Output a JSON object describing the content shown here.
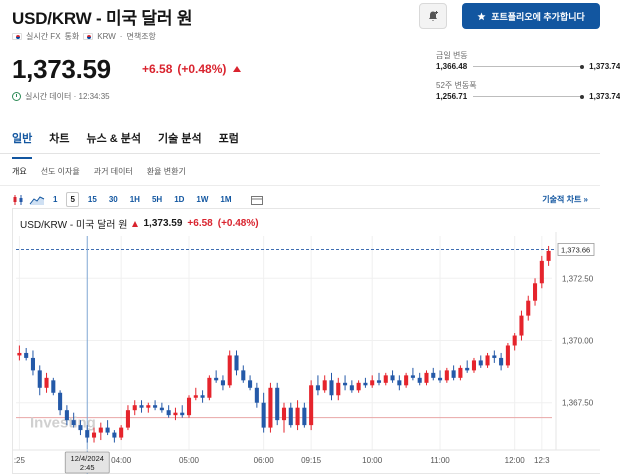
{
  "header": {
    "title": "USD/KRW - 미국 달러 원",
    "meta_items": [
      "실시간 FX",
      "통화",
      "KRW",
      "·",
      "면책조항"
    ],
    "portfolio_button": "포트폴리오에 추가합니다"
  },
  "quote": {
    "price": "1,373.59",
    "change": "+6.58",
    "change_pct": "(+0.48%)",
    "realtime_label": "실시간 데이터 · 12:34:35",
    "up_color": "#d9232e"
  },
  "ranges": {
    "day": {
      "label": "금일 변동",
      "low": "1,366.48",
      "high": "1,373.74"
    },
    "week52": {
      "label": "52주 변동폭",
      "low": "1,256.71",
      "high": "1,373.74"
    }
  },
  "tabs": [
    {
      "label": "일반",
      "active": true
    },
    {
      "label": "차트"
    },
    {
      "label": "뉴스 & 분석"
    },
    {
      "label": "기술 분석"
    },
    {
      "label": "포럼"
    }
  ],
  "subtabs": [
    "개요",
    "선도 이자율",
    "과거 데이터",
    "환율 변환기"
  ],
  "toolbar": {
    "intervals": [
      "1",
      "5",
      "15",
      "30",
      "1H",
      "5H",
      "1D",
      "1W",
      "1M"
    ],
    "selected": "5",
    "advanced_chart": "기술적 차트 »"
  },
  "chart_legend": {
    "name": "USD/KRW - 미국 달러 원",
    "value": "1,373.59",
    "change": "+6.58",
    "pct": "(+0.48%)"
  },
  "chart_data": {
    "type": "candlestick",
    "watermark": "Investing",
    "y_ticks": [
      "1,372.50",
      "1,370.00",
      "1,367.50"
    ],
    "y_tick_values": [
      1372.5,
      1370.0,
      1367.5
    ],
    "last_price_label": "1,373.66",
    "last_price": 1373.66,
    "ref_line": 1366.9,
    "ylim": [
      1365.6,
      1374.2
    ],
    "x_ticks": [
      ":25",
      "04:00",
      "05:00",
      "06:00",
      "09:15",
      "10:00",
      "11:00",
      "12:00",
      "12:3"
    ],
    "x_tick_index": [
      0,
      15,
      25,
      36,
      43,
      52,
      62,
      73,
      77
    ],
    "crosshair_index": 10,
    "crosshair_date": "12/4/2024",
    "crosshair_time": "2:45",
    "up_color": "#e5242c",
    "down_color": "#2459a8",
    "candles": [
      {
        "o": 1369.4,
        "h": 1369.8,
        "l": 1369.2,
        "c": 1369.5
      },
      {
        "o": 1369.5,
        "h": 1369.7,
        "l": 1369.2,
        "c": 1369.3
      },
      {
        "o": 1369.3,
        "h": 1369.6,
        "l": 1368.6,
        "c": 1368.8
      },
      {
        "o": 1368.8,
        "h": 1369.0,
        "l": 1367.8,
        "c": 1368.1
      },
      {
        "o": 1368.1,
        "h": 1368.7,
        "l": 1367.9,
        "c": 1368.5
      },
      {
        "o": 1368.4,
        "h": 1368.5,
        "l": 1367.8,
        "c": 1367.9
      },
      {
        "o": 1367.9,
        "h": 1368.0,
        "l": 1367.0,
        "c": 1367.2
      },
      {
        "o": 1367.2,
        "h": 1367.4,
        "l": 1366.6,
        "c": 1366.8
      },
      {
        "o": 1366.8,
        "h": 1367.1,
        "l": 1366.5,
        "c": 1366.6
      },
      {
        "o": 1366.6,
        "h": 1366.8,
        "l": 1366.2,
        "c": 1366.4
      },
      {
        "o": 1366.4,
        "h": 1366.6,
        "l": 1365.9,
        "c": 1366.1
      },
      {
        "o": 1366.1,
        "h": 1366.5,
        "l": 1365.9,
        "c": 1366.3
      },
      {
        "o": 1366.3,
        "h": 1366.7,
        "l": 1366.0,
        "c": 1366.5
      },
      {
        "o": 1366.5,
        "h": 1366.8,
        "l": 1366.2,
        "c": 1366.3
      },
      {
        "o": 1366.3,
        "h": 1366.4,
        "l": 1365.9,
        "c": 1366.1
      },
      {
        "o": 1366.1,
        "h": 1366.6,
        "l": 1366.0,
        "c": 1366.5
      },
      {
        "o": 1366.5,
        "h": 1367.4,
        "l": 1366.4,
        "c": 1367.2
      },
      {
        "o": 1367.2,
        "h": 1367.6,
        "l": 1367.0,
        "c": 1367.4
      },
      {
        "o": 1367.4,
        "h": 1367.6,
        "l": 1367.1,
        "c": 1367.3
      },
      {
        "o": 1367.3,
        "h": 1367.5,
        "l": 1367.1,
        "c": 1367.4
      },
      {
        "o": 1367.4,
        "h": 1367.6,
        "l": 1367.2,
        "c": 1367.3
      },
      {
        "o": 1367.3,
        "h": 1367.5,
        "l": 1367.1,
        "c": 1367.2
      },
      {
        "o": 1367.2,
        "h": 1367.4,
        "l": 1366.9,
        "c": 1367.0
      },
      {
        "o": 1367.0,
        "h": 1367.3,
        "l": 1366.8,
        "c": 1367.1
      },
      {
        "o": 1367.1,
        "h": 1367.4,
        "l": 1366.9,
        "c": 1367.0
      },
      {
        "o": 1367.0,
        "h": 1367.8,
        "l": 1366.9,
        "c": 1367.7
      },
      {
        "o": 1367.7,
        "h": 1368.1,
        "l": 1367.6,
        "c": 1367.8
      },
      {
        "o": 1367.8,
        "h": 1368.0,
        "l": 1367.5,
        "c": 1367.7
      },
      {
        "o": 1367.7,
        "h": 1368.6,
        "l": 1367.6,
        "c": 1368.5
      },
      {
        "o": 1368.5,
        "h": 1368.8,
        "l": 1368.3,
        "c": 1368.4
      },
      {
        "o": 1368.4,
        "h": 1368.6,
        "l": 1368.0,
        "c": 1368.2
      },
      {
        "o": 1368.2,
        "h": 1369.6,
        "l": 1368.1,
        "c": 1369.4
      },
      {
        "o": 1369.4,
        "h": 1369.6,
        "l": 1368.6,
        "c": 1368.8
      },
      {
        "o": 1368.8,
        "h": 1369.0,
        "l": 1368.3,
        "c": 1368.4
      },
      {
        "o": 1368.4,
        "h": 1368.6,
        "l": 1368.0,
        "c": 1368.1
      },
      {
        "o": 1368.1,
        "h": 1368.3,
        "l": 1367.3,
        "c": 1367.5
      },
      {
        "o": 1367.5,
        "h": 1367.9,
        "l": 1366.3,
        "c": 1366.5
      },
      {
        "o": 1366.5,
        "h": 1368.3,
        "l": 1366.3,
        "c": 1368.1
      },
      {
        "o": 1368.1,
        "h": 1368.3,
        "l": 1366.6,
        "c": 1366.8
      },
      {
        "o": 1366.8,
        "h": 1367.5,
        "l": 1366.3,
        "c": 1367.3
      },
      {
        "o": 1367.3,
        "h": 1367.5,
        "l": 1366.5,
        "c": 1366.6
      },
      {
        "o": 1366.6,
        "h": 1367.6,
        "l": 1366.4,
        "c": 1367.3
      },
      {
        "o": 1367.3,
        "h": 1367.5,
        "l": 1366.5,
        "c": 1366.6
      },
      {
        "o": 1366.6,
        "h": 1368.4,
        "l": 1366.4,
        "c": 1368.2
      },
      {
        "o": 1368.2,
        "h": 1368.6,
        "l": 1367.8,
        "c": 1368.0
      },
      {
        "o": 1368.0,
        "h": 1368.6,
        "l": 1367.9,
        "c": 1368.4
      },
      {
        "o": 1368.4,
        "h": 1368.7,
        "l": 1367.6,
        "c": 1367.8
      },
      {
        "o": 1367.8,
        "h": 1368.5,
        "l": 1367.6,
        "c": 1368.3
      },
      {
        "o": 1368.3,
        "h": 1368.6,
        "l": 1368.0,
        "c": 1368.2
      },
      {
        "o": 1368.2,
        "h": 1368.4,
        "l": 1367.9,
        "c": 1368.0
      },
      {
        "o": 1368.0,
        "h": 1368.4,
        "l": 1367.9,
        "c": 1368.3
      },
      {
        "o": 1368.3,
        "h": 1368.5,
        "l": 1368.1,
        "c": 1368.2
      },
      {
        "o": 1368.2,
        "h": 1368.6,
        "l": 1368.1,
        "c": 1368.4
      },
      {
        "o": 1368.4,
        "h": 1368.7,
        "l": 1368.2,
        "c": 1368.3
      },
      {
        "o": 1368.3,
        "h": 1368.7,
        "l": 1368.2,
        "c": 1368.6
      },
      {
        "o": 1368.6,
        "h": 1368.8,
        "l": 1368.3,
        "c": 1368.4
      },
      {
        "o": 1368.4,
        "h": 1368.6,
        "l": 1368.0,
        "c": 1368.2
      },
      {
        "o": 1368.2,
        "h": 1368.7,
        "l": 1368.1,
        "c": 1368.6
      },
      {
        "o": 1368.6,
        "h": 1368.9,
        "l": 1368.4,
        "c": 1368.5
      },
      {
        "o": 1368.5,
        "h": 1368.7,
        "l": 1368.2,
        "c": 1368.3
      },
      {
        "o": 1368.3,
        "h": 1368.8,
        "l": 1368.2,
        "c": 1368.7
      },
      {
        "o": 1368.7,
        "h": 1368.9,
        "l": 1368.4,
        "c": 1368.5
      },
      {
        "o": 1368.5,
        "h": 1368.8,
        "l": 1368.3,
        "c": 1368.4
      },
      {
        "o": 1368.4,
        "h": 1368.9,
        "l": 1368.3,
        "c": 1368.8
      },
      {
        "o": 1368.8,
        "h": 1369.0,
        "l": 1368.4,
        "c": 1368.5
      },
      {
        "o": 1368.5,
        "h": 1369.0,
        "l": 1368.4,
        "c": 1368.9
      },
      {
        "o": 1368.9,
        "h": 1369.2,
        "l": 1368.7,
        "c": 1368.8
      },
      {
        "o": 1368.8,
        "h": 1369.3,
        "l": 1368.7,
        "c": 1369.2
      },
      {
        "o": 1369.2,
        "h": 1369.4,
        "l": 1368.9,
        "c": 1369.0
      },
      {
        "o": 1369.0,
        "h": 1369.5,
        "l": 1368.9,
        "c": 1369.4
      },
      {
        "o": 1369.4,
        "h": 1369.6,
        "l": 1369.1,
        "c": 1369.3
      },
      {
        "o": 1369.3,
        "h": 1369.5,
        "l": 1368.8,
        "c": 1369.0
      },
      {
        "o": 1369.0,
        "h": 1369.9,
        "l": 1368.9,
        "c": 1369.8
      },
      {
        "o": 1369.8,
        "h": 1370.3,
        "l": 1369.6,
        "c": 1370.2
      },
      {
        "o": 1370.2,
        "h": 1371.2,
        "l": 1370.0,
        "c": 1371.0
      },
      {
        "o": 1371.0,
        "h": 1371.8,
        "l": 1370.8,
        "c": 1371.6
      },
      {
        "o": 1371.6,
        "h": 1372.5,
        "l": 1371.4,
        "c": 1372.3
      },
      {
        "o": 1372.3,
        "h": 1373.4,
        "l": 1372.1,
        "c": 1373.2
      },
      {
        "o": 1373.2,
        "h": 1373.8,
        "l": 1373.0,
        "c": 1373.6
      }
    ]
  }
}
